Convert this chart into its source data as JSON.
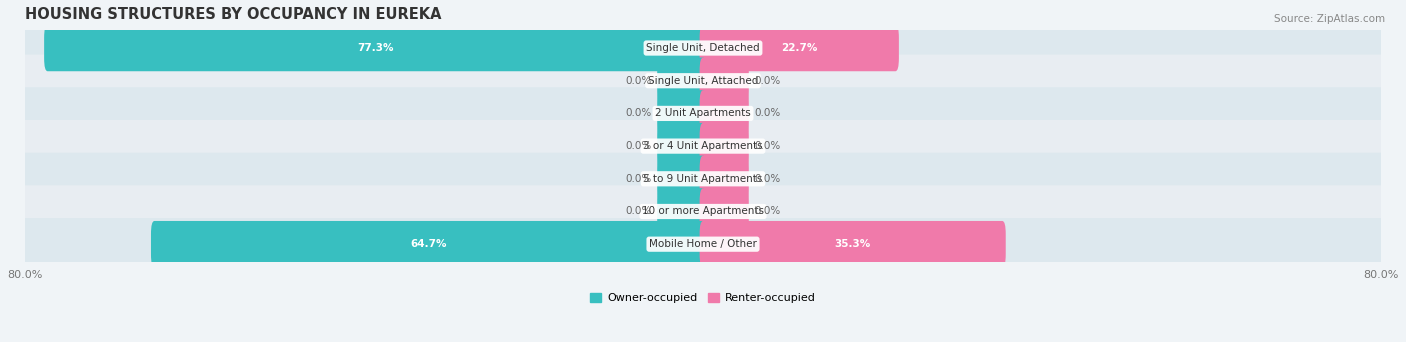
{
  "title": "HOUSING STRUCTURES BY OCCUPANCY IN EUREKA",
  "source": "Source: ZipAtlas.com",
  "categories": [
    "Single Unit, Detached",
    "Single Unit, Attached",
    "2 Unit Apartments",
    "3 or 4 Unit Apartments",
    "5 to 9 Unit Apartments",
    "10 or more Apartments",
    "Mobile Home / Other"
  ],
  "owner_pct": [
    77.3,
    0.0,
    0.0,
    0.0,
    0.0,
    0.0,
    64.7
  ],
  "renter_pct": [
    22.7,
    0.0,
    0.0,
    0.0,
    0.0,
    0.0,
    35.3
  ],
  "owner_color": "#38bfc0",
  "renter_color": "#f07aaa",
  "row_colors": [
    "#dde8ee",
    "#e8edf2",
    "#dde8ee",
    "#e8edf2",
    "#dde8ee",
    "#e8edf2",
    "#dde8ee"
  ],
  "axis_min": -80.0,
  "axis_max": 80.0,
  "stub_size": 5.0,
  "title_fontsize": 10.5,
  "source_fontsize": 7.5,
  "bar_label_fontsize": 7.5,
  "category_fontsize": 7.5,
  "legend_fontsize": 8,
  "tick_fontsize": 8
}
